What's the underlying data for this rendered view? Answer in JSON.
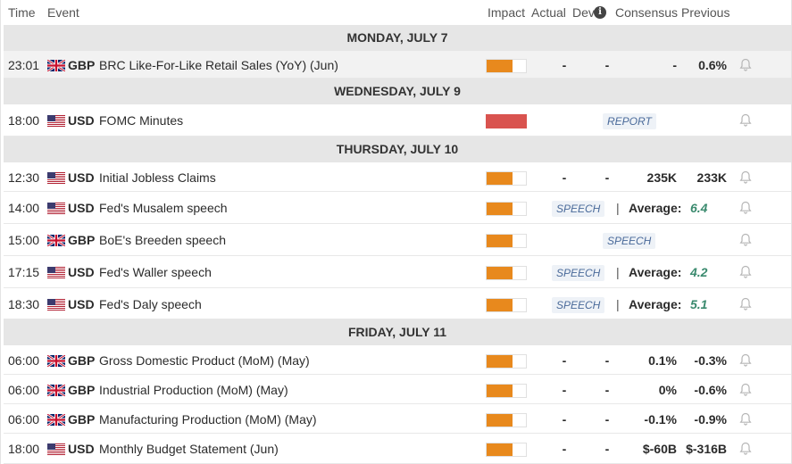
{
  "header": {
    "time": "Time",
    "event": "Event",
    "impact": "Impact",
    "actual": "Actual",
    "dev": "Dev",
    "consensus": "Consensus",
    "previous": "Previous"
  },
  "days": [
    {
      "label": "MONDAY, JULY 7"
    },
    {
      "label": "WEDNESDAY, JULY 9"
    },
    {
      "label": "THURSDAY, JULY 10"
    },
    {
      "label": "FRIDAY, JULY 11"
    }
  ],
  "events": [
    {
      "time": "23:01",
      "currency": "GBP",
      "flag": "uk",
      "name": "BRC Like-For-Like Retail Sales (YoY) (Jun)",
      "impact": "medium",
      "impact_level": 0.66,
      "actual": "-",
      "dev": "-",
      "consensus": "-",
      "previous": "0.6%"
    },
    {
      "time": "18:00",
      "currency": "USD",
      "flag": "us",
      "name": "FOMC Minutes",
      "impact": "high",
      "impact_level": 1.0,
      "tag": "REPORT"
    },
    {
      "time": "12:30",
      "currency": "USD",
      "flag": "us",
      "name": "Initial Jobless Claims",
      "impact": "medium",
      "impact_level": 0.66,
      "actual": "-",
      "dev": "-",
      "consensus": "235K",
      "previous": "233K"
    },
    {
      "time": "14:00",
      "currency": "USD",
      "flag": "us",
      "name": "Fed's Musalem speech",
      "impact": "medium",
      "impact_level": 0.66,
      "tag": "SPEECH",
      "sep": "|",
      "avg_label": "Average:",
      "avg_value": "6.4"
    },
    {
      "time": "15:00",
      "currency": "GBP",
      "flag": "uk",
      "name": "BoE's Breeden speech",
      "impact": "medium",
      "impact_level": 0.66,
      "tag": "SPEECH"
    },
    {
      "time": "17:15",
      "currency": "USD",
      "flag": "us",
      "name": "Fed's Waller speech",
      "impact": "medium",
      "impact_level": 0.66,
      "tag": "SPEECH",
      "sep": "|",
      "avg_label": "Average:",
      "avg_value": "4.2"
    },
    {
      "time": "18:30",
      "currency": "USD",
      "flag": "us",
      "name": "Fed's Daly speech",
      "impact": "medium",
      "impact_level": 0.66,
      "tag": "SPEECH",
      "sep": "|",
      "avg_label": "Average:",
      "avg_value": "5.1"
    },
    {
      "time": "06:00",
      "currency": "GBP",
      "flag": "uk",
      "name": "Gross Domestic Product (MoM) (May)",
      "impact": "medium",
      "impact_level": 0.66,
      "actual": "-",
      "dev": "-",
      "consensus": "0.1%",
      "previous": "-0.3%"
    },
    {
      "time": "06:00",
      "currency": "GBP",
      "flag": "uk",
      "name": "Industrial Production (MoM) (May)",
      "impact": "medium",
      "impact_level": 0.66,
      "actual": "-",
      "dev": "-",
      "consensus": "0%",
      "previous": "-0.6%"
    },
    {
      "time": "06:00",
      "currency": "GBP",
      "flag": "uk",
      "name": "Manufacturing Production (MoM) (May)",
      "impact": "medium",
      "impact_level": 0.66,
      "actual": "-",
      "dev": "-",
      "consensus": "-0.1%",
      "previous": "-0.9%"
    },
    {
      "time": "18:00",
      "currency": "USD",
      "flag": "us",
      "name": "Monthly Budget Statement (Jun)",
      "impact": "medium",
      "impact_level": 0.66,
      "actual": "-",
      "dev": "-",
      "consensus": "$-60B",
      "previous": "$-316B"
    }
  ],
  "colors": {
    "impact_medium": "#e8891d",
    "impact_high": "#d9534f",
    "day_bg": "#e6e6e6",
    "avg_value": "#3a8a6e",
    "tag_text": "#4a6a9a"
  }
}
